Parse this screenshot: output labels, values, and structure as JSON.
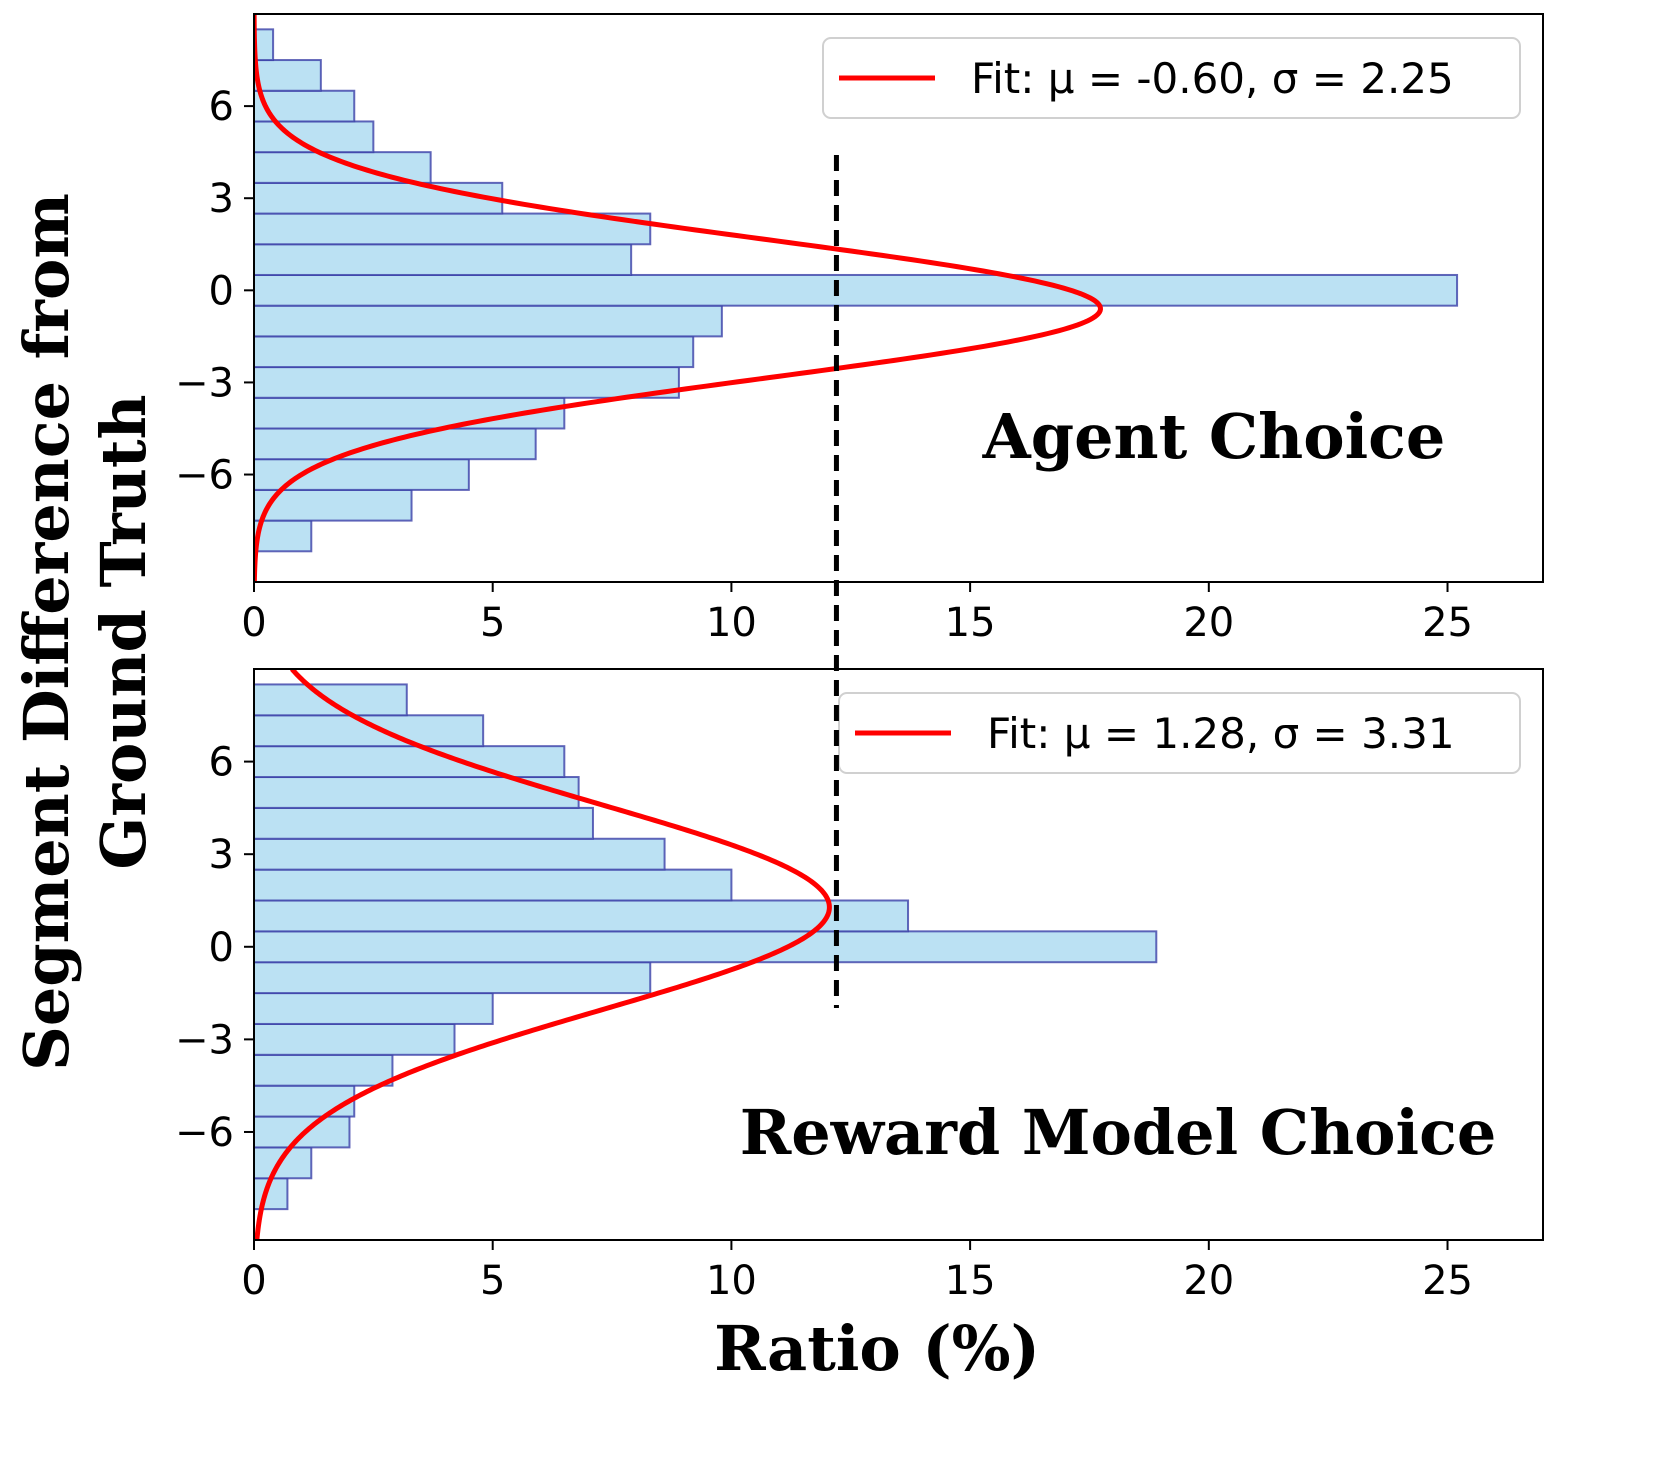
{
  "figure": {
    "xlabel": "Ratio (%)",
    "ylabel_line1": "Segment Difference from",
    "ylabel_line2": "Ground Truth"
  },
  "colors": {
    "bar_fill": "#bbe1f3",
    "bar_edge": "#3b40a8",
    "fit_line": "#ff0000",
    "threshold_line": "#000000"
  },
  "chart_data": [
    {
      "type": "bar",
      "orientation": "horizontal",
      "panel_label": "Agent Choice",
      "legend": "Fit: μ = -0.60, σ = 2.25",
      "fit": {
        "mu": -0.6,
        "sigma": 2.25
      },
      "xlim": [
        0,
        27
      ],
      "ylim": [
        -9.5,
        9.0
      ],
      "xticks": [
        0,
        5,
        10,
        15,
        20,
        25
      ],
      "xtick_labels": [
        "0",
        "5",
        "10",
        "15",
        "20",
        "25"
      ],
      "yticks": [
        6,
        3,
        0,
        -3,
        -6
      ],
      "ytick_labels": [
        "6",
        "3",
        "0",
        "−3",
        "−6"
      ],
      "threshold_x": 12.2,
      "bins": [
        {
          "y0": -8.5,
          "y1": -7.5,
          "value": 1.2
        },
        {
          "y0": -7.5,
          "y1": -6.5,
          "value": 3.3
        },
        {
          "y0": -6.5,
          "y1": -5.5,
          "value": 4.5
        },
        {
          "y0": -5.5,
          "y1": -4.5,
          "value": 5.9
        },
        {
          "y0": -4.5,
          "y1": -3.5,
          "value": 6.5
        },
        {
          "y0": -3.5,
          "y1": -2.5,
          "value": 8.9
        },
        {
          "y0": -2.5,
          "y1": -1.5,
          "value": 9.2
        },
        {
          "y0": -1.5,
          "y1": -0.5,
          "value": 9.8
        },
        {
          "y0": -0.5,
          "y1": 0.5,
          "value": 25.2
        },
        {
          "y0": 0.5,
          "y1": 1.5,
          "value": 7.9
        },
        {
          "y0": 1.5,
          "y1": 2.5,
          "value": 8.3
        },
        {
          "y0": 2.5,
          "y1": 3.5,
          "value": 5.2
        },
        {
          "y0": 3.5,
          "y1": 4.5,
          "value": 3.7
        },
        {
          "y0": 4.5,
          "y1": 5.5,
          "value": 2.5
        },
        {
          "y0": 5.5,
          "y1": 6.5,
          "value": 2.1
        },
        {
          "y0": 6.5,
          "y1": 7.5,
          "value": 1.4
        },
        {
          "y0": 7.5,
          "y1": 8.5,
          "value": 0.4
        }
      ]
    },
    {
      "type": "bar",
      "orientation": "horizontal",
      "panel_label": "Reward Model Choice",
      "legend": "Fit: μ = 1.28, σ = 3.31",
      "fit": {
        "mu": 1.28,
        "sigma": 3.31
      },
      "xlim": [
        0,
        27
      ],
      "ylim": [
        -9.5,
        9.0
      ],
      "xticks": [
        0,
        5,
        10,
        15,
        20,
        25
      ],
      "xtick_labels": [
        "0",
        "5",
        "10",
        "15",
        "20",
        "25"
      ],
      "yticks": [
        6,
        3,
        0,
        -3,
        -6
      ],
      "ytick_labels": [
        "6",
        "3",
        "0",
        "−3",
        "−6"
      ],
      "threshold_x": 12.2,
      "bins": [
        {
          "y0": -8.5,
          "y1": -7.5,
          "value": 0.7
        },
        {
          "y0": -7.5,
          "y1": -6.5,
          "value": 1.2
        },
        {
          "y0": -6.5,
          "y1": -5.5,
          "value": 2.0
        },
        {
          "y0": -5.5,
          "y1": -4.5,
          "value": 2.1
        },
        {
          "y0": -4.5,
          "y1": -3.5,
          "value": 2.9
        },
        {
          "y0": -3.5,
          "y1": -2.5,
          "value": 4.2
        },
        {
          "y0": -2.5,
          "y1": -1.5,
          "value": 5.0
        },
        {
          "y0": -1.5,
          "y1": -0.5,
          "value": 8.3
        },
        {
          "y0": -0.5,
          "y1": 0.5,
          "value": 18.9
        },
        {
          "y0": 0.5,
          "y1": 1.5,
          "value": 13.7
        },
        {
          "y0": 1.5,
          "y1": 2.5,
          "value": 10.0
        },
        {
          "y0": 2.5,
          "y1": 3.5,
          "value": 8.6
        },
        {
          "y0": 3.5,
          "y1": 4.5,
          "value": 7.1
        },
        {
          "y0": 4.5,
          "y1": 5.5,
          "value": 6.8
        },
        {
          "y0": 5.5,
          "y1": 6.5,
          "value": 6.5
        },
        {
          "y0": 6.5,
          "y1": 7.5,
          "value": 4.8
        },
        {
          "y0": 7.5,
          "y1": 8.5,
          "value": 3.2
        }
      ]
    }
  ]
}
